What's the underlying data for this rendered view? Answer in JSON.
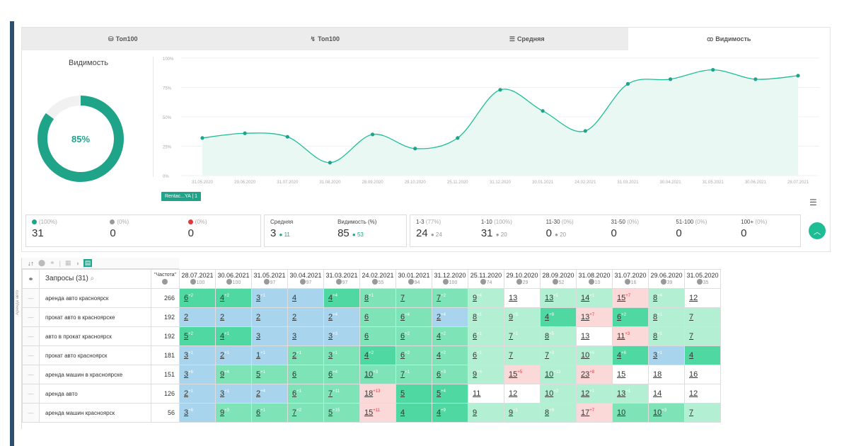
{
  "tabs": [
    {
      "icon": "database-icon",
      "label": "Топ100"
    },
    {
      "icon": "trend-icon",
      "label": "Топ100"
    },
    {
      "icon": "list-icon",
      "label": "Средняя"
    },
    {
      "icon": "binoculars-icon",
      "label": "Видимость"
    }
  ],
  "visibility": {
    "title": "Видимость",
    "percent": "85%",
    "fraction": 0.85
  },
  "series_chip": "Rentac...YA | 1",
  "chart_data": {
    "type": "line",
    "x": [
      "31.05.2020",
      "29.06.2020",
      "31.07.2020",
      "31.08.2020",
      "28.09.2020",
      "29.10.2020",
      "25.11.2020",
      "31.12.2020",
      "30.01.2021",
      "24.02.2021",
      "31.03.2021",
      "30.04.2021",
      "31.05.2021",
      "30.06.2021",
      "28.07.2021"
    ],
    "values": [
      32,
      36,
      33,
      11,
      35,
      23,
      32,
      73,
      55,
      38,
      78,
      82,
      90,
      82,
      85
    ],
    "yticks": [
      "0%",
      "25%",
      "50%",
      "75%",
      "100%"
    ],
    "ylim": [
      0,
      100
    ]
  },
  "stats": {
    "g1": [
      {
        "dot": "#1fa389",
        "sym": "+",
        "pct": "(100%)",
        "val": "31"
      },
      {
        "dot": "#999999",
        "sym": "=",
        "pct": "(0%)",
        "val": "0"
      },
      {
        "dot": "#e0393e",
        "sym": "−",
        "pct": "(0%)",
        "val": "0"
      }
    ],
    "g2": [
      {
        "label": "Средняя",
        "val": "3",
        "delta": "11"
      },
      {
        "label": "Видимость (%)",
        "val": "85",
        "delta": "53"
      }
    ],
    "g3": [
      {
        "label": "1-3",
        "pct": "(77%)",
        "val": "24",
        "delta": "24"
      },
      {
        "label": "1-10",
        "pct": "(100%)",
        "val": "31",
        "delta": "20"
      },
      {
        "label": "11-30",
        "pct": "(0%)",
        "val": "0",
        "delta": "20"
      },
      {
        "label": "31-50",
        "pct": "(0%)",
        "val": "0"
      },
      {
        "label": "51-100",
        "pct": "(0%)",
        "val": "0"
      },
      {
        "label": "100+",
        "pct": "(0%)",
        "val": "0"
      }
    ]
  },
  "table": {
    "sort_label": "↓↑",
    "query_header": "Запросы (31)",
    "freq_header": "\"Частота\"",
    "side_label": "Аренда авто",
    "dates": [
      {
        "d": "28.07.2021",
        "n": "100"
      },
      {
        "d": "30.06.2021",
        "n": "100"
      },
      {
        "d": "31.05.2021",
        "n": "97"
      },
      {
        "d": "30.04.2021",
        "n": "97"
      },
      {
        "d": "31.03.2021",
        "n": "97"
      },
      {
        "d": "24.02.2021",
        "n": "55"
      },
      {
        "d": "30.01.2021",
        "n": "94"
      },
      {
        "d": "31.12.2020",
        "n": "100"
      },
      {
        "d": "25.11.2020",
        "n": "74"
      },
      {
        "d": "29.10.2020",
        "n": "29"
      },
      {
        "d": "28.09.2020",
        "n": "52"
      },
      {
        "d": "31.08.2020",
        "n": "10"
      },
      {
        "d": "31.07.2020",
        "n": "16"
      },
      {
        "d": "29.06.2020",
        "n": "39"
      },
      {
        "d": "31.05.2020",
        "n": "35"
      }
    ],
    "rows": [
      {
        "q": "аренда авто красноярск",
        "f": "266",
        "cells": [
          [
            "6",
            "+2",
            "g1"
          ],
          [
            "4",
            "+2",
            "g1"
          ],
          [
            "3",
            "+1",
            "b"
          ],
          [
            "4",
            "",
            "b"
          ],
          [
            "4",
            "+4",
            "g1"
          ],
          [
            "8",
            "+1",
            "g2"
          ],
          [
            "7",
            "",
            "g2"
          ],
          [
            "7",
            "+2",
            "g2"
          ],
          [
            "9",
            "+4",
            "g3"
          ],
          [
            "13",
            "",
            "w"
          ],
          [
            "13",
            "+1",
            "g3"
          ],
          [
            "14",
            "+1",
            "g3"
          ],
          [
            "15",
            "+7",
            "p"
          ],
          [
            "8",
            "+4",
            "g3"
          ],
          [
            "12",
            "",
            "w"
          ]
        ]
      },
      {
        "q": "прокат авто в красноярске",
        "f": "192",
        "cells": [
          [
            "2",
            "",
            "b"
          ],
          [
            "2",
            "",
            "b"
          ],
          [
            "2",
            "",
            "b"
          ],
          [
            "2",
            "",
            "b"
          ],
          [
            "2",
            "+4",
            "b"
          ],
          [
            "6",
            "",
            "g2"
          ],
          [
            "6",
            "+4",
            "g2"
          ],
          [
            "2",
            "+4",
            "b"
          ],
          [
            "8",
            "+1",
            "g3"
          ],
          [
            "9",
            "+5",
            "g3"
          ],
          [
            "4",
            "+9",
            "g1"
          ],
          [
            "13",
            "+7",
            "p"
          ],
          [
            "6",
            "+2",
            "g1"
          ],
          [
            "8",
            "+1",
            "g3"
          ],
          [
            "7",
            "",
            "g3"
          ]
        ]
      },
      {
        "q": "авто в прокат красноярск",
        "f": "192",
        "cells": [
          [
            "5",
            "+2",
            "g1"
          ],
          [
            "4",
            "+1",
            "g1"
          ],
          [
            "3",
            "",
            "b"
          ],
          [
            "3",
            "",
            "b"
          ],
          [
            "3",
            "+3",
            "b"
          ],
          [
            "6",
            "",
            "g2"
          ],
          [
            "6",
            "+2",
            "g2"
          ],
          [
            "4",
            "+2",
            "g2"
          ],
          [
            "6",
            "+1",
            "g3"
          ],
          [
            "7",
            "+1",
            "g3"
          ],
          [
            "8",
            "+5",
            "g3"
          ],
          [
            "13",
            "+2",
            "w"
          ],
          [
            "11",
            "+3",
            "p"
          ],
          [
            "8",
            "+1",
            "g3"
          ],
          [
            "7",
            "",
            "g3"
          ]
        ]
      },
      {
        "q": "прокат авто красноярск",
        "f": "181",
        "cells": [
          [
            "3",
            "+1",
            "b"
          ],
          [
            "2",
            "+1",
            "b"
          ],
          [
            "1",
            "+1",
            "b"
          ],
          [
            "2",
            "+1",
            "g2"
          ],
          [
            "3",
            "+1",
            "g2"
          ],
          [
            "4",
            "+2",
            "g1"
          ],
          [
            "6",
            "+2",
            "g2"
          ],
          [
            "4",
            "+2",
            "g2"
          ],
          [
            "6",
            "+1",
            "g3"
          ],
          [
            "7",
            "",
            "g3"
          ],
          [
            "7",
            "+3",
            "g3"
          ],
          [
            "10",
            "+6",
            "g3"
          ],
          [
            "4",
            "+6",
            "g1"
          ],
          [
            "3",
            "+1",
            "b"
          ],
          [
            "4",
            "",
            "g1"
          ]
        ]
      },
      {
        "q": "аренда машин в красноярске",
        "f": "151",
        "cells": [
          [
            "3",
            "+6",
            "b"
          ],
          [
            "9",
            "+4",
            "g2"
          ],
          [
            "5",
            "+1",
            "g2"
          ],
          [
            "6",
            "",
            "g2"
          ],
          [
            "6",
            "+4",
            "g2"
          ],
          [
            "10",
            "+3",
            "g2"
          ],
          [
            "7",
            "+1",
            "g2"
          ],
          [
            "6",
            "+3",
            "g2"
          ],
          [
            "9",
            "+4",
            "g3"
          ],
          [
            "15",
            "+5",
            "p"
          ],
          [
            "10",
            "+13",
            "g3"
          ],
          [
            "23",
            "+8",
            "p"
          ],
          [
            "15",
            "+3",
            "w"
          ],
          [
            "18",
            "+2",
            "w"
          ],
          [
            "16",
            "",
            "w"
          ]
        ]
      },
      {
        "q": "аренда авто",
        "f": "126",
        "cells": [
          [
            "2",
            "+1",
            "b"
          ],
          [
            "3",
            "+1",
            "b"
          ],
          [
            "2",
            "+4",
            "b"
          ],
          [
            "6",
            "+1",
            "g2"
          ],
          [
            "7",
            "+11",
            "g2"
          ],
          [
            "18",
            "+13",
            "p"
          ],
          [
            "5",
            "",
            "g1"
          ],
          [
            "5",
            "+4",
            "g1"
          ],
          [
            "11",
            "+1",
            "w"
          ],
          [
            "12",
            "+2",
            "w"
          ],
          [
            "10",
            "+2",
            "g3"
          ],
          [
            "12",
            "+1",
            "g3"
          ],
          [
            "13",
            "+1",
            "g3"
          ],
          [
            "14",
            "+2",
            "w"
          ],
          [
            "12",
            "",
            "w"
          ]
        ]
      },
      {
        "q": "аренда машин красноярск",
        "f": "56",
        "cells": [
          [
            "3",
            "+6",
            "b"
          ],
          [
            "9",
            "+3",
            "g2"
          ],
          [
            "6",
            "+1",
            "g2"
          ],
          [
            "7",
            "+2",
            "g2"
          ],
          [
            "5",
            "+15",
            "g2"
          ],
          [
            "15",
            "+11",
            "p"
          ],
          [
            "4",
            "",
            "g1"
          ],
          [
            "4",
            "+9",
            "g1"
          ],
          [
            "9",
            "",
            "g3"
          ],
          [
            "9",
            "+1",
            "g3"
          ],
          [
            "8",
            "+9",
            "g3"
          ],
          [
            "17",
            "+7",
            "p"
          ],
          [
            "10",
            "",
            "g2"
          ],
          [
            "10",
            "+3",
            "g2"
          ],
          [
            "7",
            "",
            "g3"
          ]
        ]
      }
    ]
  }
}
